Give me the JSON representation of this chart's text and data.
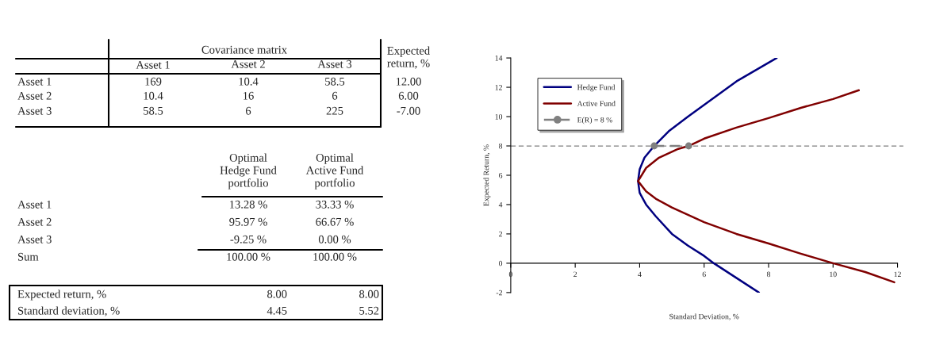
{
  "chart_data": [
    {
      "type": "other",
      "annotations": [
        "Covariance matrix",
        "Expected\nreturn, %",
        "Asset 1",
        "Asset 2",
        "Asset 3",
        "Asset 1",
        "169",
        "10.4",
        "58.5",
        "12.00",
        "Asset 2",
        "10.4",
        "16",
        "6",
        "6.00",
        "Asset 3",
        "58.5",
        "6",
        "225",
        "-7.00",
        "Optimal\nHedge Fund\nportfolio",
        "Optimal\nActive Fund\nportfolio",
        "Asset 1",
        "13.28 %",
        "33.33 %",
        "Asset 2",
        "95.97 %",
        "66.67 %",
        "Asset 3",
        "-9.25 %",
        "0.00 %",
        "Sum",
        "100.00 %",
        "100.00 %",
        "Expected return, %",
        "8.00",
        "8.00",
        "Standard deviation, %",
        "4.45",
        "5.52"
      ]
    },
    {
      "type": "line",
      "xlabel": "Standard Deviation, %",
      "ylabel": "Expected Return, %",
      "xlim": [
        0,
        12
      ],
      "ylim": [
        -2,
        14
      ],
      "xticks": [
        0,
        2,
        4,
        6,
        8,
        10,
        12
      ],
      "yticks": [
        -2,
        0,
        2,
        4,
        6,
        8,
        10,
        12,
        14
      ],
      "grid": false,
      "legend": "top left",
      "ref_lines": [
        {
          "axis": "y",
          "value": 8,
          "label": null,
          "color": "#808080",
          "line_style": "dashed"
        }
      ],
      "series": [
        {
          "name": "Hedge Fund",
          "color": "#000080",
          "x": [
            7.7,
            7.0,
            6.3,
            6.0,
            5.5,
            5.0,
            4.5,
            4.2,
            4.0,
            3.95,
            4.0,
            4.15,
            4.45,
            4.9,
            5.5,
            6.0,
            7.0,
            8.25
          ],
          "values": [
            -2,
            -1,
            0,
            0.5,
            1.2,
            2,
            3.2,
            4,
            4.8,
            5.6,
            6.4,
            7.2,
            8,
            9,
            10,
            10.8,
            12.4,
            14
          ]
        },
        {
          "name": "Active Fund",
          "color": "#800000",
          "x": [
            11.9,
            11,
            10,
            9,
            8,
            7,
            6,
            5.5,
            5,
            4.5,
            4.2,
            3.95,
            4.2,
            4.6,
            5.2,
            5.52,
            6,
            7,
            8,
            9,
            10,
            10.8
          ],
          "values": [
            -1.3,
            -0.6,
            0,
            0.65,
            1.35,
            2,
            2.8,
            3.3,
            3.8,
            4.4,
            4.9,
            5.6,
            6.5,
            7.2,
            7.8,
            8,
            8.5,
            9.25,
            9.9,
            10.6,
            11.2,
            11.8
          ]
        },
        {
          "name": "E(R) = 8 %",
          "color": "#808080",
          "marker": "circle",
          "line_style": "dashed",
          "x": [
            4.45,
            5.52
          ],
          "values": [
            8,
            8
          ]
        }
      ]
    }
  ]
}
